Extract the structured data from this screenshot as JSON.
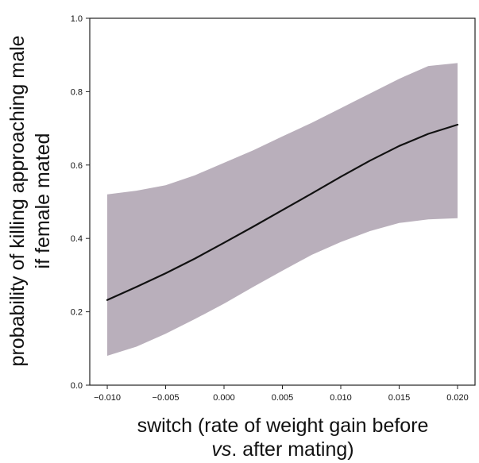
{
  "chart_data": {
    "type": "line",
    "title": "",
    "xlabel_line1": "switch (rate of weight gain before",
    "xlabel_line2_italic": "vs",
    "xlabel_line2_rest": ". after mating)",
    "ylabel_line1": "probability of killing approaching male",
    "ylabel_line2": "if female mated",
    "xlim": [
      -0.0115,
      0.0215
    ],
    "ylim": [
      0.0,
      1.0
    ],
    "x_ticks": [
      -0.01,
      -0.005,
      0.0,
      0.005,
      0.01,
      0.015,
      0.02
    ],
    "x_tick_labels": [
      "−0.010",
      "−0.005",
      "0.000",
      "0.005",
      "0.010",
      "0.015",
      "0.020"
    ],
    "y_ticks": [
      0.0,
      0.2,
      0.4,
      0.6,
      0.8,
      1.0
    ],
    "y_tick_labels": [
      "0.0",
      "0.2",
      "0.4",
      "0.6",
      "0.8",
      "1.0"
    ],
    "grid": false,
    "legend": "none",
    "colors": {
      "band": "#b9afbb",
      "line": "#111111",
      "axes": "#222222"
    },
    "series": [
      {
        "x": [
          -0.01,
          -0.0075,
          -0.005,
          -0.0025,
          0.0,
          0.0025,
          0.005,
          0.0075,
          0.01,
          0.0125,
          0.015,
          0.0175,
          0.02
        ],
        "y": [
          0.232,
          0.268,
          0.305,
          0.345,
          0.388,
          0.432,
          0.477,
          0.522,
          0.568,
          0.612,
          0.652,
          0.685,
          0.71
        ],
        "lower": [
          0.08,
          0.105,
          0.14,
          0.18,
          0.222,
          0.268,
          0.312,
          0.355,
          0.39,
          0.42,
          0.442,
          0.452,
          0.455
        ],
        "upper": [
          0.52,
          0.53,
          0.545,
          0.572,
          0.606,
          0.64,
          0.678,
          0.715,
          0.755,
          0.795,
          0.835,
          0.87,
          0.878
        ]
      }
    ]
  }
}
